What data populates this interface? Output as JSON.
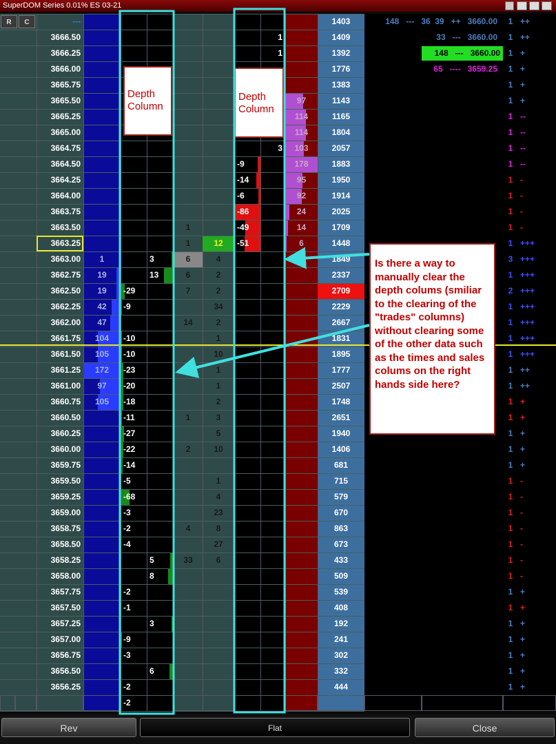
{
  "title": "SuperDOM Series 0.01% ES 03-21",
  "header": {
    "r": "R",
    "c": "C"
  },
  "rows": [
    {
      "price": "---",
      "vol": 1403
    },
    {
      "price": "3666.50",
      "d4": 1,
      "vol": 1409
    },
    {
      "price": "3666.25",
      "d4": 1,
      "vol": 1392
    },
    {
      "price": "3666.00",
      "vol": 1776
    },
    {
      "price": "3665.75",
      "vol": 1383
    },
    {
      "price": "3665.50",
      "ask": 97,
      "vol": 1143
    },
    {
      "price": "3665.25",
      "ask": 114,
      "vol": 1165
    },
    {
      "price": "3665.00",
      "ask": 114,
      "vol": 1804
    },
    {
      "price": "3664.75",
      "d4": 3,
      "ask": 103,
      "vol": 2057
    },
    {
      "price": "3664.50",
      "d3": -9,
      "ask": 178,
      "vol": 1883
    },
    {
      "price": "3664.25",
      "d3": -14,
      "ask": 95,
      "vol": 1950
    },
    {
      "price": "3664.00",
      "d3": -6,
      "ask": 92,
      "vol": 1914
    },
    {
      "price": "3663.75",
      "d3": -86,
      "ask": 24,
      "vol": 2025
    },
    {
      "price": "3663.50",
      "t1": 1,
      "d3": -49,
      "ask": 14,
      "vol": 1709
    },
    {
      "price": "3663.25",
      "t1": 1,
      "t2": 12,
      "d3": -51,
      "ask": 6,
      "vol": 1448
    },
    {
      "price": "3663.00",
      "bid": 1,
      "d2": 3,
      "t1": 6,
      "t2": 4,
      "vol": 1849
    },
    {
      "price": "3662.75",
      "bid": 19,
      "d2": 13,
      "t1": 6,
      "t2": 2,
      "vol": 2337
    },
    {
      "price": "3662.50",
      "bid": 19,
      "d1": -29,
      "t1": 7,
      "t2": 2,
      "vol": 2709
    },
    {
      "price": "3662.25",
      "bid": 42,
      "d1": -9,
      "t2": 34,
      "vol": 2229
    },
    {
      "price": "3662.00",
      "bid": 47,
      "t1": 14,
      "t2": 2,
      "vol": 2667
    },
    {
      "price": "3661.75",
      "bid": 104,
      "d1": -10,
      "t2": 1,
      "vol": 1831
    },
    {
      "price": "3661.50",
      "bid": 105,
      "d1": -10,
      "t2": 10,
      "vol": 1895
    },
    {
      "price": "3661.25",
      "bid": 172,
      "d1": -23,
      "t2": 1,
      "vol": 1777
    },
    {
      "price": "3661.00",
      "bid": 97,
      "d1": -20,
      "t2": 1,
      "vol": 2507
    },
    {
      "price": "3660.75",
      "bid": 105,
      "d1": -18,
      "t2": 2,
      "vol": 1748
    },
    {
      "price": "3660.50",
      "d1": -11,
      "t1": 1,
      "t2": 3,
      "vol": 2651
    },
    {
      "price": "3660.25",
      "d1": -27,
      "t2": 5,
      "vol": 1940
    },
    {
      "price": "3660.00",
      "d1": -22,
      "t1": 2,
      "t2": 10,
      "vol": 1406
    },
    {
      "price": "3659.75",
      "d1": -14,
      "vol": 681
    },
    {
      "price": "3659.50",
      "d1": -5,
      "t2": 1,
      "vol": 715
    },
    {
      "price": "3659.25",
      "d1": -68,
      "t2": 4,
      "vol": 579
    },
    {
      "price": "3659.00",
      "d1": -3,
      "t2": 23,
      "vol": 670
    },
    {
      "price": "3658.75",
      "d1": -2,
      "t1": 4,
      "t2": 8,
      "vol": 863
    },
    {
      "price": "3658.50",
      "d1": -4,
      "t2": 27,
      "vol": 673
    },
    {
      "price": "3658.25",
      "d2": 5,
      "t1": 33,
      "t2": 6,
      "vol": 433
    },
    {
      "price": "3658.00",
      "d2": 8,
      "vol": 509
    },
    {
      "price": "3657.75",
      "d1": -2,
      "vol": 539
    },
    {
      "price": "3657.50",
      "d1": -1,
      "vol": 408
    },
    {
      "price": "3657.25",
      "d2": 3,
      "vol": 192
    },
    {
      "price": "3657.00",
      "d1": -9,
      "vol": 241
    },
    {
      "price": "3656.75",
      "d1": -3,
      "vol": 302
    },
    {
      "price": "3656.50",
      "d2": 6,
      "vol": 332
    },
    {
      "price": "3656.25",
      "d1": -2,
      "vol": 444
    },
    {
      "d1": -2
    }
  ],
  "tape": [
    {
      "text": "148   ---   36  39   ++   3660.00",
      "color": "#4a7fc0"
    },
    {
      "text": "33   ---   3660.00",
      "color": "#4a7fc0"
    },
    {
      "text": "148   ---   3660.00",
      "color": "#000000",
      "bg": "#22dd22"
    },
    {
      "text": "65   ----   3659.25",
      "color": "#e020e0"
    }
  ],
  "counts": [
    {
      "n": 1,
      "sign": "++",
      "color": "#4a7fc0"
    },
    {
      "n": 1,
      "sign": "++",
      "color": "#4a7fc0"
    },
    {
      "n": 1,
      "sign": "+",
      "color": "#4a7fc0"
    },
    {
      "n": 1,
      "sign": "+",
      "color": "#4a7fc0"
    },
    {
      "n": 1,
      "sign": "+",
      "color": "#4a7fc0"
    },
    {
      "n": 1,
      "sign": "+",
      "color": "#4a7fc0"
    },
    {
      "n": 1,
      "sign": "--",
      "color": "#e020e0"
    },
    {
      "n": 1,
      "sign": "--",
      "color": "#e020e0"
    },
    {
      "n": 1,
      "sign": "--",
      "color": "#e020e0"
    },
    {
      "n": 1,
      "sign": "--",
      "color": "#e020e0"
    },
    {
      "n": 1,
      "sign": "-",
      "color": "#e02020"
    },
    {
      "n": 1,
      "sign": "-",
      "color": "#e02020"
    },
    {
      "n": 1,
      "sign": "-",
      "color": "#e02020"
    },
    {
      "n": 1,
      "sign": "-",
      "color": "#e02020"
    },
    {
      "n": 1,
      "sign": "+++",
      "color": "#3a50ff"
    },
    {
      "n": 3,
      "sign": "+++",
      "color": "#3a50ff"
    },
    {
      "n": 1,
      "sign": "+++",
      "color": "#3a50ff"
    },
    {
      "n": 2,
      "sign": "+++",
      "color": "#3a50ff"
    },
    {
      "n": 1,
      "sign": "+++",
      "color": "#3a50ff"
    },
    {
      "n": 1,
      "sign": "+++",
      "color": "#3a50ff"
    },
    {
      "n": 1,
      "sign": "+++",
      "color": "#3a50ff"
    },
    {
      "n": 1,
      "sign": "+++",
      "color": "#3a50ff"
    },
    {
      "n": 1,
      "sign": "++",
      "color": "#4a7fc0"
    },
    {
      "n": 1,
      "sign": "++",
      "color": "#4a7fc0"
    },
    {
      "n": 1,
      "sign": "+",
      "color": "#e02020"
    },
    {
      "n": 1,
      "sign": "+",
      "color": "#e02020"
    },
    {
      "n": 1,
      "sign": "+",
      "color": "#4a7fc0"
    },
    {
      "n": 1,
      "sign": "+",
      "color": "#4a7fc0"
    },
    {
      "n": 1,
      "sign": "+",
      "color": "#4a7fc0"
    },
    {
      "n": 1,
      "sign": "-",
      "color": "#e02020"
    },
    {
      "n": 1,
      "sign": "-",
      "color": "#e02020"
    },
    {
      "n": 1,
      "sign": "-",
      "color": "#e02020"
    },
    {
      "n": 1,
      "sign": "-",
      "color": "#e02020"
    },
    {
      "n": 1,
      "sign": "-",
      "color": "#e02020"
    },
    {
      "n": 1,
      "sign": "-",
      "color": "#e02020"
    },
    {
      "n": 1,
      "sign": "-",
      "color": "#e02020"
    },
    {
      "n": 1,
      "sign": "+",
      "color": "#4a7fc0"
    },
    {
      "n": 1,
      "sign": "+",
      "color": "#e02020"
    },
    {
      "n": 1,
      "sign": "+",
      "color": "#4a7fc0"
    },
    {
      "n": 1,
      "sign": "+",
      "color": "#4a7fc0"
    },
    {
      "n": 1,
      "sign": "+",
      "color": "#4a7fc0"
    },
    {
      "n": 1,
      "sign": "+",
      "color": "#4a7fc0"
    },
    {
      "n": 1,
      "sign": "+",
      "color": "#4a7fc0"
    }
  ],
  "annotations": {
    "depth_left": "Depth Column",
    "depth_right": "Depth Column",
    "callout": "Is there a way to manually clear the depth colums (smiliar to the clearing of the \"trades\" columns) without clearing some of the other data such as the times and sales colums on the right hands side here?"
  },
  "buttons": [
    "Rev",
    "Flat",
    "Close"
  ]
}
